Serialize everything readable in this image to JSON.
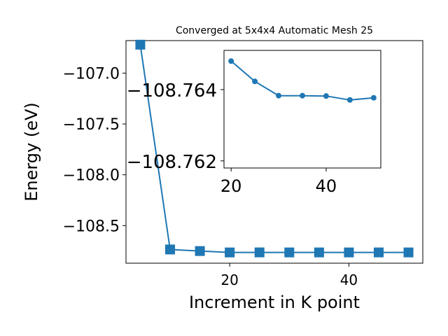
{
  "chart_data": [
    {
      "type": "line",
      "title": "Converged at 5x4x4 Automatic Mesh 25",
      "xlabel": "Increment in K point",
      "ylabel": "Energy (eV)",
      "xlim": [
        2.6,
        52.4
      ],
      "ylim": [
        -108.87,
        -106.68
      ],
      "xticks": [
        20,
        40
      ],
      "yticks": [
        -107.0,
        -107.5,
        -108.0,
        -108.5
      ],
      "xtick_labels": [
        "20",
        "40"
      ],
      "ytick_labels": [
        "−107.0",
        "−107.5",
        "−108.0",
        "−108.5"
      ],
      "grid": false,
      "color": "#1f77b4",
      "marker": "square",
      "series": [
        {
          "x": [
            5,
            10,
            15,
            20,
            25,
            30,
            35,
            40,
            45,
            50
          ],
          "values": [
            -106.72,
            -108.735,
            -108.7505,
            -108.7642,
            -108.7637,
            -108.764,
            -108.764,
            -108.7641,
            -108.7639,
            -108.764
          ]
        }
      ]
    },
    {
      "type": "line",
      "title": "",
      "xlabel": "",
      "ylabel": "",
      "xlim": [
        18.5,
        51.5
      ],
      "ylim": [
        -108.7618,
        -108.7651
      ],
      "xticks": [
        20,
        40
      ],
      "yticks": [
        -108.764,
        -108.762
      ],
      "xtick_labels": [
        "20",
        "40"
      ],
      "ytick_labels": [
        "−108.764",
        "−108.762"
      ],
      "grid": false,
      "color": "#1f77b4",
      "marker": "circle",
      "series": [
        {
          "x": [
            20,
            25,
            30,
            35,
            40,
            45,
            50
          ],
          "values": [
            -108.7648,
            -108.76423,
            -108.76383,
            -108.76383,
            -108.76382,
            -108.76371,
            -108.76377
          ]
        }
      ]
    }
  ]
}
